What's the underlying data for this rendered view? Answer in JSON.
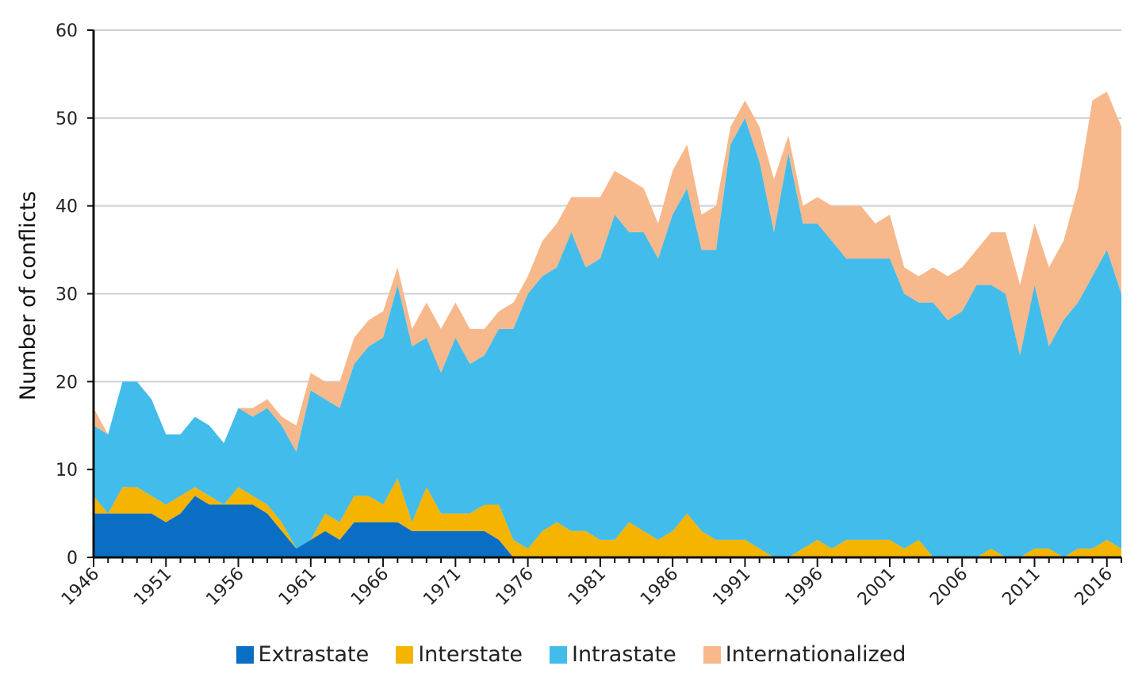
{
  "colors": {
    "Extrastate": "#0a6ec4",
    "Interstate": "#f5b400",
    "Intrastate": "#42bcea",
    "Internationalized": "#f7b88c",
    "grid": "#c9d2d8",
    "axis": "#111111"
  },
  "chart_data": {
    "type": "area",
    "stacked": true,
    "title": "",
    "xlabel": "",
    "ylabel": "Number of conflicts",
    "ylim": [
      0,
      60
    ],
    "xlim": [
      1946,
      2017
    ],
    "yticks": [
      0,
      10,
      20,
      30,
      40,
      50,
      60
    ],
    "xticks": [
      1946,
      1951,
      1956,
      1961,
      1966,
      1971,
      1976,
      1981,
      1986,
      1991,
      1996,
      2001,
      2006,
      2011,
      2016
    ],
    "grid": true,
    "legend_position": "bottom",
    "x": [
      1946,
      1947,
      1948,
      1949,
      1950,
      1951,
      1952,
      1953,
      1954,
      1955,
      1956,
      1957,
      1958,
      1959,
      1960,
      1961,
      1962,
      1963,
      1964,
      1965,
      1966,
      1967,
      1968,
      1969,
      1970,
      1971,
      1972,
      1973,
      1974,
      1975,
      1976,
      1977,
      1978,
      1979,
      1980,
      1981,
      1982,
      1983,
      1984,
      1985,
      1986,
      1987,
      1988,
      1989,
      1990,
      1991,
      1992,
      1993,
      1994,
      1995,
      1996,
      1997,
      1998,
      1999,
      2000,
      2001,
      2002,
      2003,
      2004,
      2005,
      2006,
      2007,
      2008,
      2009,
      2010,
      2011,
      2012,
      2013,
      2014,
      2015,
      2016,
      2017
    ],
    "series": [
      {
        "name": "Extrastate",
        "values": [
          5,
          5,
          5,
          5,
          5,
          4,
          5,
          7,
          6,
          6,
          6,
          6,
          5,
          3,
          1,
          2,
          3,
          2,
          4,
          4,
          4,
          4,
          3,
          3,
          3,
          3,
          3,
          3,
          2,
          0,
          0,
          0,
          0,
          0,
          0,
          0,
          0,
          0,
          0,
          0,
          0,
          0,
          0,
          0,
          0,
          0,
          0,
          0,
          0,
          0,
          0,
          0,
          0,
          0,
          0,
          0,
          0,
          0,
          0,
          0,
          0,
          0,
          0,
          0,
          0,
          0,
          0,
          0,
          0,
          0,
          0,
          0
        ]
      },
      {
        "name": "Interstate",
        "values": [
          2,
          0,
          3,
          3,
          2,
          2,
          2,
          1,
          1,
          0,
          2,
          1,
          1,
          1,
          0,
          0,
          2,
          2,
          3,
          3,
          2,
          5,
          1,
          5,
          2,
          2,
          2,
          3,
          4,
          2,
          1,
          3,
          4,
          3,
          3,
          2,
          2,
          4,
          3,
          2,
          3,
          5,
          3,
          2,
          2,
          2,
          1,
          0,
          0,
          1,
          2,
          1,
          2,
          2,
          2,
          2,
          1,
          2,
          0,
          0,
          0,
          0,
          1,
          0,
          0,
          1,
          1,
          0,
          1,
          1,
          2,
          1
        ]
      },
      {
        "name": "Intrastate",
        "values": [
          8,
          9,
          12,
          12,
          11,
          8,
          7,
          8,
          8,
          7,
          9,
          9,
          11,
          11,
          11,
          17,
          13,
          13,
          15,
          17,
          19,
          22,
          20,
          17,
          16,
          20,
          17,
          17,
          20,
          24,
          29,
          29,
          29,
          34,
          30,
          32,
          37,
          33,
          34,
          32,
          36,
          37,
          32,
          33,
          45,
          48,
          44,
          37,
          46,
          37,
          36,
          35,
          32,
          32,
          32,
          32,
          29,
          27,
          29,
          27,
          28,
          31,
          30,
          30,
          23,
          30,
          23,
          27,
          28,
          31,
          33,
          29
        ]
      },
      {
        "name": "Internationalized",
        "values": [
          2,
          0,
          0,
          0,
          0,
          0,
          0,
          0,
          0,
          0,
          0,
          1,
          1,
          1,
          3,
          2,
          2,
          3,
          3,
          3,
          3,
          2,
          2,
          4,
          5,
          4,
          4,
          3,
          2,
          3,
          2,
          4,
          5,
          4,
          8,
          7,
          5,
          6,
          5,
          4,
          5,
          5,
          4,
          5,
          2,
          2,
          4,
          6,
          2,
          2,
          3,
          4,
          6,
          6,
          4,
          5,
          3,
          3,
          4,
          5,
          5,
          4,
          6,
          7,
          8,
          7,
          9,
          9,
          13,
          20,
          18,
          19
        ]
      }
    ]
  }
}
